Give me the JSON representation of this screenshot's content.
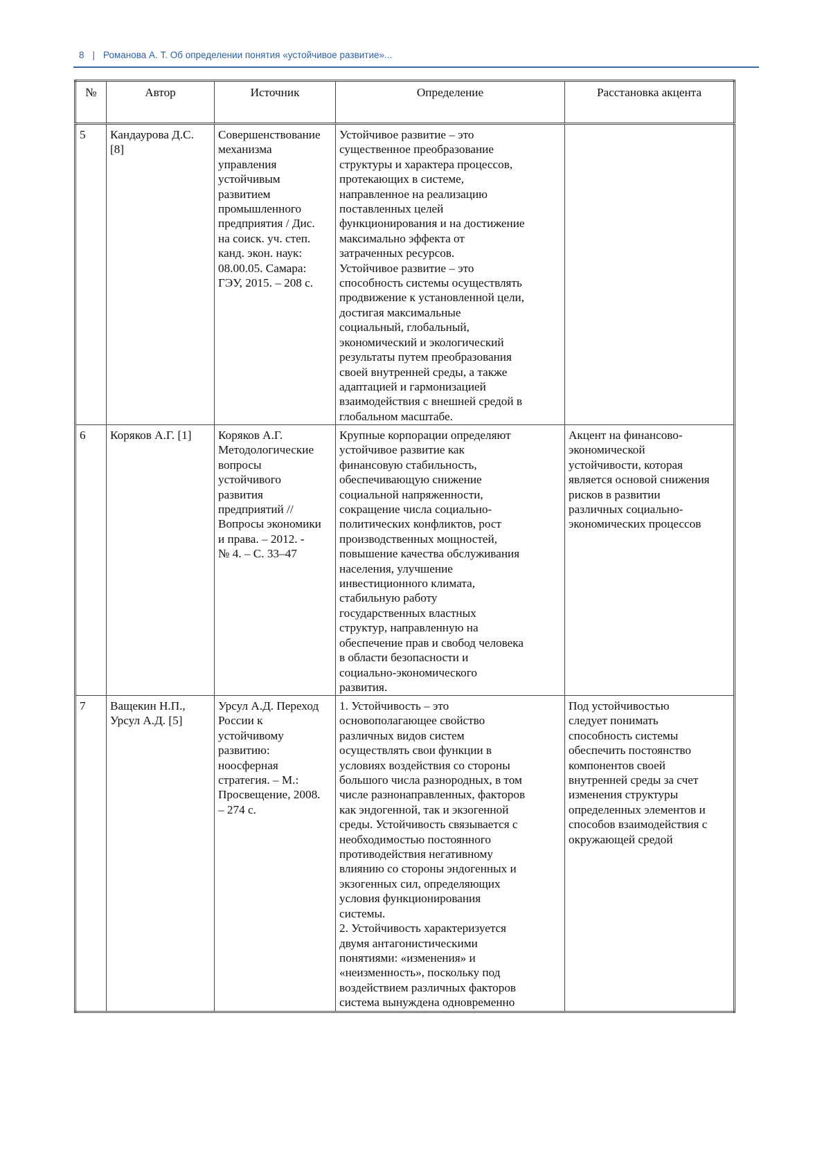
{
  "header": {
    "page_number": "8",
    "separator": "|",
    "running_title": "Романова А. Т. Об определении понятия «устойчивое развитие»..."
  },
  "table": {
    "columns": [
      "№",
      "Автор",
      "Источник",
      "Определение",
      "Расстановка акцента"
    ],
    "rows": [
      {
        "num": "5",
        "author": "Кандаурова Д.С.\n[8]",
        "source": "Совершенствование\nмеханизма\nуправления\nустойчивым\nразвитием\nпромышленного\nпредприятия / Дис.\nна соиск. уч. степ.\nканд. экон. наук:\n08.00.05. Самара:\nГЭУ, 2015. – 208 с.",
        "definition": "Устойчивое развитие – это\nсущественное преобразование\nструктуры и характера процессов,\nпротекающих в системе,\nнаправленное на реализацию\nпоставленных целей\nфункционирования и на достижение\nмаксимально эффекта от\nзатраченных ресурсов.\nУстойчивое развитие – это\nспособность системы осуществлять\nпродвижение к установленной цели,\nдостигая максимальные\nсоциальный, глобальный,\nэкономический и экологический\nрезультаты путем преобразования\nсвоей внутренней среды, а также\nадаптацией и гармонизацией\nвзаимодействия с внешней средой в\nглобальном масштабе.",
        "emphasis": ""
      },
      {
        "num": "6",
        "author": "Коряков А.Г. [1]",
        "source": "Коряков А.Г.\nМетодологические\nвопросы\nустойчивого\nразвития\nпредприятий  //\nВопросы экономики\nи права. – 2012. -\n№ 4. – С. 33–47",
        "definition": "Крупные корпорации определяют\nустойчивое развитие как\nфинансовую стабильность,\nобеспечивающую снижение\nсоциальной напряженности,\nсокращение числа социально-\nполитических конфликтов, рост\nпроизводственных мощностей,\nповышение качества обслуживания\nнаселения, улучшение\nинвестиционного климата,\nстабильную работу\nгосударственных властных\nструктур, направленную на\nобеспечение прав и свобод человека\nв области безопасности и\nсоциально-экономического\nразвития.",
        "emphasis": "Акцент на финансово-\nэкономической\nустойчивости, которая\nявляется основой снижения\nрисков в развитии\nразличных социально-\nэкономических процессов"
      },
      {
        "num": "7",
        "author": "Ващекин Н.П.,\nУрсул А.Д. [5]",
        "source": "Урсул А.Д. Переход\nРоссии к\nустойчивому\nразвитию:\nноосферная\nстратегия. – М.:\nПросвещение, 2008.\n– 274 с.",
        "definition": "1. Устойчивость – это\nосновополагающее свойство\nразличных видов систем\nосуществлять свои функции в\nусловиях воздействия со стороны\nбольшого числа разнородных, в том\nчисле разнонаправленных, факторов\nкак эндогенной, так и экзогенной\nсреды. Устойчивость связывается с\nнеобходимостью постоянного\nпротиводействия негативному\nвлиянию со стороны эндогенных и\nэкзогенных сил, определяющих\nусловия функционирования\nсистемы.\n2. Устойчивость характеризуется\nдвумя антагонистическими\nпонятиями: «изменения» и\n«неизменность», поскольку под\nвоздействием различных факторов\nсистема вынуждена одновременно",
        "emphasis": "Под устойчивостью\nследует понимать\nспособность системы\nобеспечить постоянство\nкомпонентов своей\nвнутренней среды за счет\nизменения структуры\nопределенных элементов и\nспособов взаимодействия с\nокружающей средой"
      }
    ]
  }
}
